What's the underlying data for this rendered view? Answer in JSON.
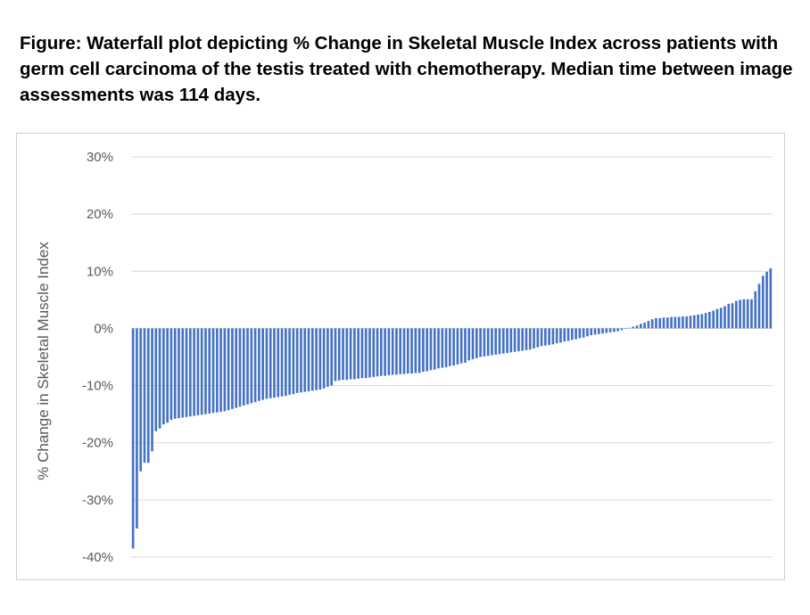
{
  "chart_data": {
    "type": "bar",
    "title": "Figure: Waterfall plot depicting % Change in Skeletal Muscle Index across patients with germ cell carcinoma of the testis treated with chemotherapy. Median time between image assessments was 114 days.",
    "xlabel": "",
    "ylabel": "% Change in Skeletal Muscle Index",
    "ylim": [
      -40,
      30
    ],
    "yticks": [
      "30%",
      "20%",
      "10%",
      "0%",
      "-10%",
      "-20%",
      "-30%",
      "-40%"
    ],
    "ytick_values": [
      30,
      20,
      10,
      0,
      -10,
      -20,
      -30,
      -40
    ],
    "grid": true,
    "color": "#4472c4",
    "values": [
      -38.5,
      -35,
      -25,
      -23.5,
      -23.5,
      -21.5,
      -18,
      -17.5,
      -16.8,
      -16.5,
      -16,
      -15.8,
      -15.7,
      -15.6,
      -15.5,
      -15.4,
      -15.3,
      -15.2,
      -15.1,
      -15,
      -14.9,
      -14.8,
      -14.7,
      -14.6,
      -14.5,
      -14.3,
      -14.1,
      -13.9,
      -13.7,
      -13.5,
      -13.3,
      -13.1,
      -12.9,
      -12.7,
      -12.5,
      -12.3,
      -12.2,
      -12.1,
      -12,
      -11.9,
      -11.8,
      -11.6,
      -11.5,
      -11.3,
      -11.2,
      -11.1,
      -11,
      -10.9,
      -10.8,
      -10.7,
      -10.5,
      -10.2,
      -10,
      -9.2,
      -9.1,
      -9,
      -9,
      -8.9,
      -8.9,
      -8.8,
      -8.7,
      -8.7,
      -8.6,
      -8.5,
      -8.4,
      -8.3,
      -8.3,
      -8.2,
      -8.1,
      -8.1,
      -8,
      -8,
      -7.9,
      -7.9,
      -7.8,
      -7.8,
      -7.6,
      -7.5,
      -7.3,
      -7.2,
      -7,
      -6.9,
      -6.8,
      -6.6,
      -6.5,
      -6.3,
      -6.1,
      -6,
      -5.6,
      -5.4,
      -5.2,
      -5,
      -4.9,
      -4.8,
      -4.7,
      -4.6,
      -4.5,
      -4.4,
      -4.3,
      -4.2,
      -4.1,
      -4,
      -3.9,
      -3.8,
      -3.7,
      -3.5,
      -3.3,
      -3.1,
      -3,
      -2.9,
      -2.8,
      -2.6,
      -2.5,
      -2.3,
      -2.2,
      -2,
      -1.9,
      -1.7,
      -1.6,
      -1.4,
      -1.2,
      -1.1,
      -1,
      -0.9,
      -0.8,
      -0.7,
      -0.6,
      -0.5,
      -0.3,
      -0.1,
      0.1,
      0.3,
      0.5,
      0.8,
      1,
      1.3,
      1.6,
      1.8,
      1.8,
      1.9,
      1.9,
      2,
      2,
      2,
      2.1,
      2.1,
      2.2,
      2.3,
      2.4,
      2.5,
      2.7,
      2.9,
      3.1,
      3.4,
      3.6,
      3.9,
      4.3,
      4.4,
      4.8,
      5,
      5.1,
      5.1,
      5.1,
      6.5,
      7.8,
      9.2,
      9.9,
      10.5
    ]
  }
}
